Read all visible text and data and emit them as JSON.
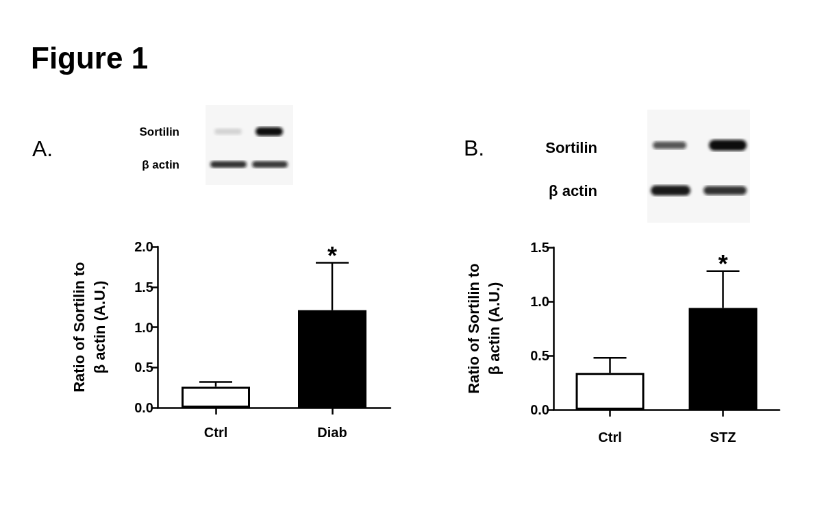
{
  "chart_data": [
    {
      "type": "bar",
      "title": "A.",
      "ylabel": "Ratio of Sortilin to\nβ actin (A.U.)",
      "categories": [
        "Ctrl",
        "Diab"
      ],
      "values": [
        0.26,
        1.21
      ],
      "errors": [
        [
          0.26,
          0.32
        ],
        [
          1.21,
          1.8
        ]
      ],
      "colors": [
        "#ffffff",
        "#000000"
      ],
      "ylim": [
        0,
        2
      ],
      "yticks": [
        {
          "value": 0,
          "label": "0.0"
        },
        {
          "value": 0.5,
          "label": "0.5"
        },
        {
          "value": 1,
          "label": "1.0"
        },
        {
          "value": 1.5,
          "label": "1.5"
        },
        {
          "value": 2,
          "label": "2.0"
        }
      ],
      "annotations": [
        "Figure 1",
        "Sortilin",
        "β actin",
        "*"
      ]
    },
    {
      "type": "bar",
      "title": "B.",
      "ylabel": "Ratio of Sortilin to\nβ actin (A.U.)",
      "categories": [
        "Ctrl",
        "STZ"
      ],
      "values": [
        0.34,
        0.94
      ],
      "errors": [
        [
          0.34,
          0.48
        ],
        [
          0.94,
          1.28
        ]
      ],
      "colors": [
        "#ffffff",
        "#000000"
      ],
      "ylim": [
        0,
        1.5
      ],
      "yticks": [
        {
          "value": 0,
          "label": "0.0"
        },
        {
          "value": 0.5,
          "label": "0.5"
        },
        {
          "value": 1,
          "label": "1.0"
        },
        {
          "value": 1.5,
          "label": "1.5"
        }
      ],
      "annotations": [
        "Sortilin",
        "β actin",
        "*"
      ]
    }
  ]
}
